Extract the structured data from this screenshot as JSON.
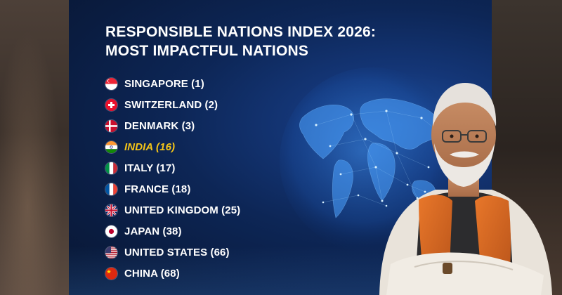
{
  "header": {
    "title_line1": "RESPONSIBLE NATIONS INDEX 2026:",
    "title_line2": "MOST IMPACTFUL NATIONS"
  },
  "accent_color": "#f5c518",
  "rankings": [
    {
      "label": "SINGAPORE (1)",
      "flag": "singapore-flag-icon",
      "highlight": false
    },
    {
      "label": "SWITZERLAND (2)",
      "flag": "switzerland-flag-icon",
      "highlight": false
    },
    {
      "label": "DENMARK (3)",
      "flag": "denmark-flag-icon",
      "highlight": false
    },
    {
      "label": "INDIA (16)",
      "flag": "india-flag-icon",
      "highlight": true
    },
    {
      "label": "ITALY (17)",
      "flag": "italy-flag-icon",
      "highlight": false
    },
    {
      "label": "FRANCE (18)",
      "flag": "france-flag-icon",
      "highlight": false
    },
    {
      "label": "UNITED KINGDOM (25)",
      "flag": "uk-flag-icon",
      "highlight": false
    },
    {
      "label": "JAPAN (38)",
      "flag": "japan-flag-icon",
      "highlight": false
    },
    {
      "label": "UNITED STATES (66)",
      "flag": "usa-flag-icon",
      "highlight": false
    },
    {
      "label": "CHINA (68)",
      "flag": "china-flag-icon",
      "highlight": false
    }
  ]
}
